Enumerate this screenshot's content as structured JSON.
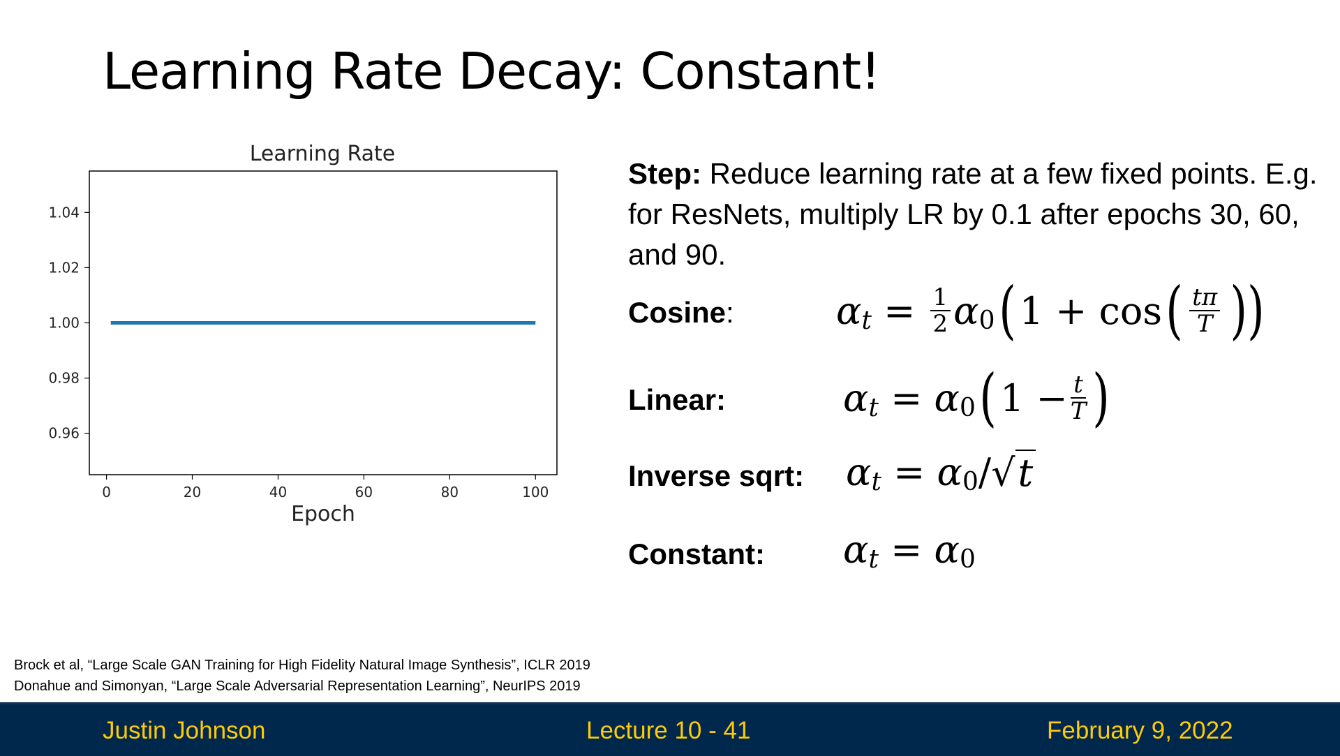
{
  "slide": {
    "title_bold": "Learning Rate Decay",
    "title_rest": ": Constant!"
  },
  "step": {
    "label": "Step:",
    "text": " Reduce learning rate at a few fixed points. E.g. for ResNets, multiply LR by 0.1 after epochs 30, 60, and 90."
  },
  "formulas": [
    {
      "label": "Cosine",
      "suffix": ":"
    },
    {
      "label": "Linear:",
      "suffix": ""
    },
    {
      "label": "Inverse sqrt:",
      "suffix": ""
    },
    {
      "label": "Constant:",
      "suffix": ""
    }
  ],
  "references": [
    "Brock et al, “Large Scale GAN Training for High Fidelity Natural Image Synthesis”, ICLR 2019",
    "Donahue and Simonyan, “Large Scale Adversarial Representation Learning”, NeurIPS 2019"
  ],
  "footer": {
    "author": "Justin Johnson",
    "lecture": "Lecture 10 - 41",
    "date": "February 9, 2022"
  },
  "colors": {
    "footer_bg": "#00274c",
    "footer_text": "#ffcb05",
    "line": "#1f77b4"
  },
  "chart_data": {
    "type": "line",
    "title": "Learning Rate",
    "xlabel": "Epoch",
    "ylabel": "",
    "xlim": [
      -4,
      105
    ],
    "ylim": [
      0.945,
      1.055
    ],
    "xticks": [
      0,
      20,
      40,
      60,
      80,
      100
    ],
    "yticks": [
      0.96,
      0.98,
      1.0,
      1.02,
      1.04
    ],
    "ytick_labels": [
      "0.96",
      "0.98",
      "1.00",
      "1.02",
      "1.04"
    ],
    "grid": false,
    "series": [
      {
        "x": [
          1,
          100
        ],
        "values": [
          1.0,
          1.0
        ]
      }
    ]
  }
}
